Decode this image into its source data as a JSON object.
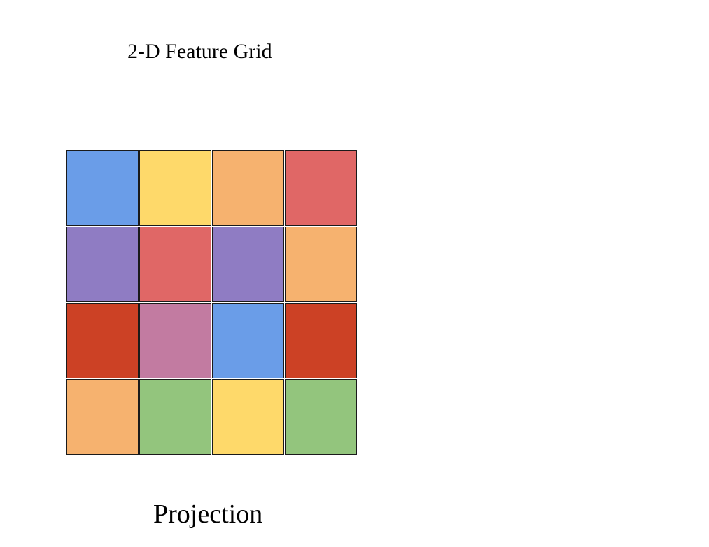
{
  "title": "2-D Feature Grid",
  "caption": "Projection",
  "grid": {
    "rows": 4,
    "cols": 4,
    "cells": [
      [
        "#6a9de8",
        "#fed96a",
        "#f6b26f",
        "#e06766"
      ],
      [
        "#8f7cc3",
        "#e06766",
        "#8f7cc3",
        "#f6b26f"
      ],
      [
        "#cc4125",
        "#c27ba1",
        "#6a9de8",
        "#cc4125"
      ],
      [
        "#f6b26f",
        "#93c57d",
        "#fed96a",
        "#93c57d"
      ]
    ]
  }
}
